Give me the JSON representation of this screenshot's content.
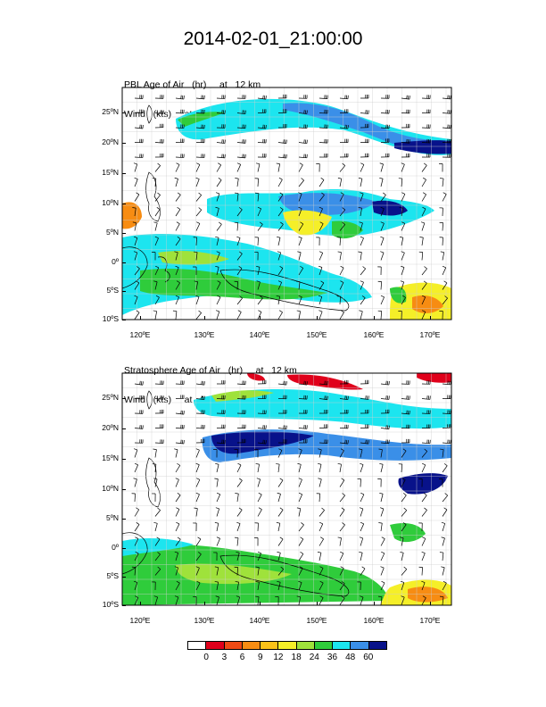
{
  "title": "2014-02-01_21:00:00",
  "panels": [
    {
      "field_label": "PBL Age of Air   (hr)     at   12 km",
      "wind_label": "Wind   (kts)     at   12 km"
    },
    {
      "field_label": "Stratosphere Age of Air   (hr)     at   12 km",
      "wind_label": "Wind   (kts)     at   12 km"
    }
  ],
  "lat_labels": [
    "25ºN",
    "20ºN",
    "15ºN",
    "10ºN",
    "5ºN",
    "0º",
    "5ºS",
    "10ºS"
  ],
  "lon_labels": [
    "120ºE",
    "130ºE",
    "140ºE",
    "150ºE",
    "160ºE",
    "170ºE"
  ],
  "colorbar": {
    "colors": [
      "#ffffff",
      "#e0001b",
      "#ef4a14",
      "#f78c12",
      "#fac218",
      "#f5ef28",
      "#9fe23b",
      "#2fcc3b",
      "#1ce5ef",
      "#3a8fe8",
      "#08128a"
    ],
    "labels": [
      "0",
      "3",
      "6",
      "9",
      "12",
      "18",
      "24",
      "36",
      "48",
      "60"
    ]
  }
}
